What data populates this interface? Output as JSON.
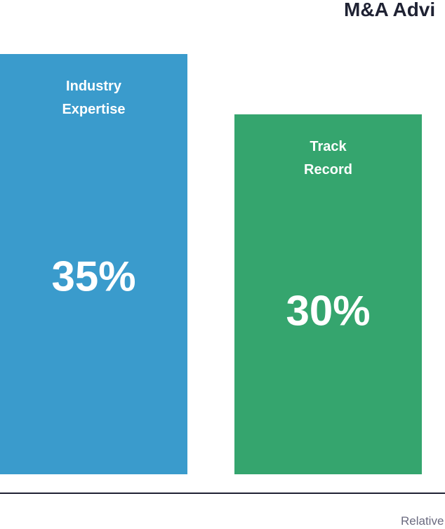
{
  "chart_data": {
    "type": "bar",
    "title": "M&A Advi",
    "x_label": "Relative",
    "categories": [
      "Industry Expertise",
      "Track Record"
    ],
    "values": [
      35,
      30
    ],
    "value_labels": [
      "35%",
      "30%"
    ],
    "colors": [
      "#3a9bcc",
      "#35a56e"
    ],
    "ylim": [
      0,
      35
    ]
  }
}
